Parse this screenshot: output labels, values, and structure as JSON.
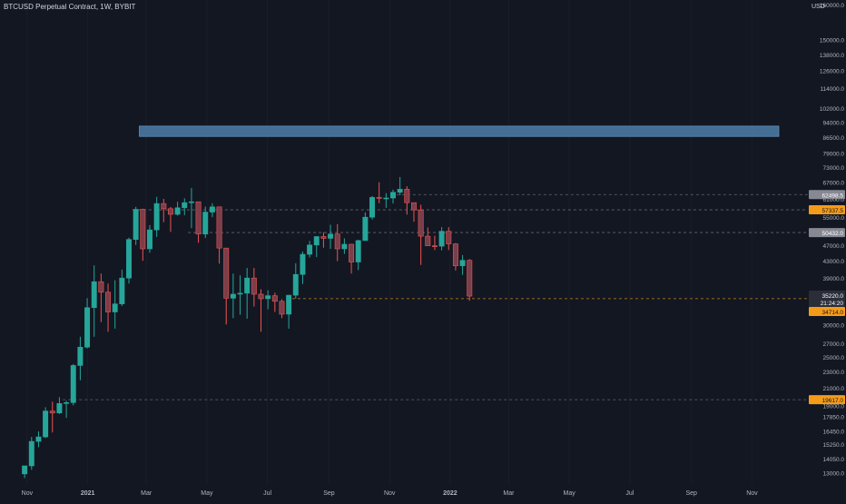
{
  "chart_title": "BTCUSD Perpetual Contract, 1W, BYBIT",
  "currency": "USD",
  "colors": {
    "background": "#131722",
    "up": "#26a69a",
    "down": "#ef5350",
    "down_body": "#7b3e4a",
    "zone": "#4e7ea8",
    "level_gray": "#787b86",
    "level_orange": "#f59b1a",
    "axis_text": "#b2b5be"
  },
  "y_tick_labels": [
    "150000.0",
    "138000.0",
    "126000.0",
    "114000.0",
    "102000.0",
    "94000.0",
    "86500.0",
    "79000.0",
    "73000.0",
    "67000.0",
    "61000.0",
    "55000.0",
    "47000.0",
    "43000.0",
    "39000.0",
    "35000.0",
    "30000.0",
    "27000.0",
    "25000.0",
    "23000.0",
    "21000.0",
    "19000.0",
    "17850.0",
    "16450.0",
    "15250.0",
    "14050.0",
    "13000.0"
  ],
  "x_tick_labels": [
    "Nov",
    "2021",
    "Mar",
    "May",
    "Jul",
    "Sep",
    "Nov",
    "2022",
    "Mar",
    "May",
    "Jul",
    "Sep",
    "Nov"
  ],
  "price_labels": {
    "top_partial": "160000.0",
    "level1": "62498.5",
    "level2": "57337.5",
    "level3": "50432.0",
    "current_price": "35220.0",
    "countdown": "21:24:20",
    "level4": "34714.0",
    "level5": "19617.0"
  },
  "chart_data": {
    "type": "candlestick",
    "title": "BTCUSD Perpetual Contract, 1W, BYBIT",
    "interval": "1W",
    "exchange": "BYBIT",
    "y_scale": "log",
    "ylim": [
      12500,
      165000
    ],
    "xlim": [
      "2020-10-12",
      "2022-11-28"
    ],
    "horizontal_levels": [
      {
        "price": 62498.5,
        "start": "2021-11-08",
        "color": "gray"
      },
      {
        "price": 57337.5,
        "start": "2021-02-15",
        "color": "gray"
      },
      {
        "price": 50432.0,
        "start": "2021-04-12",
        "color": "gray"
      },
      {
        "price": 34714.0,
        "start": "2021-07-26",
        "color": "orange"
      },
      {
        "price": 19617.0,
        "start": "2020-12-07",
        "color": "gray"
      }
    ],
    "zone": {
      "start": "2021-02-22",
      "end": "2022-11-28",
      "high": 92000,
      "low": 86800
    },
    "candles": [
      {
        "d": "2020-10-26",
        "o": 12900,
        "h": 13500,
        "l": 12600,
        "c": 13500
      },
      {
        "d": "2020-11-02",
        "o": 13500,
        "h": 15900,
        "l": 13200,
        "c": 15500
      },
      {
        "d": "2020-11-09",
        "o": 15500,
        "h": 16400,
        "l": 15000,
        "c": 15900
      },
      {
        "d": "2020-11-16",
        "o": 15900,
        "h": 18800,
        "l": 15800,
        "c": 18400
      },
      {
        "d": "2020-11-23",
        "o": 18400,
        "h": 19400,
        "l": 16300,
        "c": 18200
      },
      {
        "d": "2020-11-30",
        "o": 18200,
        "h": 19900,
        "l": 18100,
        "c": 19200
      },
      {
        "d": "2020-12-07",
        "o": 19200,
        "h": 19500,
        "l": 17700,
        "c": 19300
      },
      {
        "d": "2020-12-14",
        "o": 19300,
        "h": 24000,
        "l": 19000,
        "c": 23800
      },
      {
        "d": "2020-12-21",
        "o": 23800,
        "h": 28000,
        "l": 21900,
        "c": 26400
      },
      {
        "d": "2020-12-28",
        "o": 26400,
        "h": 34800,
        "l": 26200,
        "c": 33000
      },
      {
        "d": "2021-01-04",
        "o": 33000,
        "h": 41900,
        "l": 28000,
        "c": 38200
      },
      {
        "d": "2021-01-11",
        "o": 38200,
        "h": 40000,
        "l": 30400,
        "c": 36000
      },
      {
        "d": "2021-01-18",
        "o": 36000,
        "h": 37800,
        "l": 28800,
        "c": 32200
      },
      {
        "d": "2021-01-25",
        "o": 32200,
        "h": 38500,
        "l": 29300,
        "c": 33700
      },
      {
        "d": "2021-02-01",
        "o": 33700,
        "h": 40900,
        "l": 33300,
        "c": 39000
      },
      {
        "d": "2021-02-08",
        "o": 39000,
        "h": 49000,
        "l": 37800,
        "c": 48500
      },
      {
        "d": "2021-02-15",
        "o": 48500,
        "h": 58300,
        "l": 47000,
        "c": 57500
      },
      {
        "d": "2021-02-22",
        "o": 57500,
        "h": 57700,
        "l": 43000,
        "c": 46000
      },
      {
        "d": "2021-03-01",
        "o": 46000,
        "h": 52600,
        "l": 45000,
        "c": 51200
      },
      {
        "d": "2021-03-08",
        "o": 51200,
        "h": 61700,
        "l": 49200,
        "c": 59400
      },
      {
        "d": "2021-03-15",
        "o": 59400,
        "h": 61000,
        "l": 53500,
        "c": 57700
      },
      {
        "d": "2021-03-22",
        "o": 57700,
        "h": 58300,
        "l": 50600,
        "c": 55900
      },
      {
        "d": "2021-03-29",
        "o": 55900,
        "h": 60000,
        "l": 55500,
        "c": 58000
      },
      {
        "d": "2021-04-05",
        "o": 58000,
        "h": 61200,
        "l": 55600,
        "c": 59700
      },
      {
        "d": "2021-04-12",
        "o": 59700,
        "h": 64900,
        "l": 51700,
        "c": 60000
      },
      {
        "d": "2021-04-19",
        "o": 60000,
        "h": 60000,
        "l": 47600,
        "c": 50000
      },
      {
        "d": "2021-04-26",
        "o": 50000,
        "h": 58400,
        "l": 48900,
        "c": 56600
      },
      {
        "d": "2021-05-03",
        "o": 56600,
        "h": 59500,
        "l": 55000,
        "c": 58300
      },
      {
        "d": "2021-05-10",
        "o": 58300,
        "h": 58300,
        "l": 42300,
        "c": 46200
      },
      {
        "d": "2021-05-17",
        "o": 46200,
        "h": 46200,
        "l": 30000,
        "c": 34800
      },
      {
        "d": "2021-05-24",
        "o": 34800,
        "h": 40000,
        "l": 31100,
        "c": 35600
      },
      {
        "d": "2021-05-31",
        "o": 35600,
        "h": 39600,
        "l": 31700,
        "c": 35800
      },
      {
        "d": "2021-06-07",
        "o": 35800,
        "h": 41300,
        "l": 31000,
        "c": 39000
      },
      {
        "d": "2021-06-14",
        "o": 39000,
        "h": 41300,
        "l": 33200,
        "c": 35600
      },
      {
        "d": "2021-06-21",
        "o": 35600,
        "h": 36600,
        "l": 28800,
        "c": 34700
      },
      {
        "d": "2021-06-28",
        "o": 34700,
        "h": 36400,
        "l": 32700,
        "c": 35300
      },
      {
        "d": "2021-07-05",
        "o": 35300,
        "h": 35900,
        "l": 32200,
        "c": 34200
      },
      {
        "d": "2021-07-12",
        "o": 34200,
        "h": 34600,
        "l": 31100,
        "c": 31800
      },
      {
        "d": "2021-07-19",
        "o": 31800,
        "h": 35400,
        "l": 29300,
        "c": 35400
      },
      {
        "d": "2021-07-26",
        "o": 35400,
        "h": 42400,
        "l": 34700,
        "c": 39800
      },
      {
        "d": "2021-08-02",
        "o": 39800,
        "h": 45300,
        "l": 37700,
        "c": 44600
      },
      {
        "d": "2021-08-09",
        "o": 44600,
        "h": 48100,
        "l": 43800,
        "c": 47000
      },
      {
        "d": "2021-08-16",
        "o": 47000,
        "h": 49400,
        "l": 43900,
        "c": 49300
      },
      {
        "d": "2021-08-23",
        "o": 49300,
        "h": 50500,
        "l": 46300,
        "c": 48800
      },
      {
        "d": "2021-08-30",
        "o": 48800,
        "h": 52700,
        "l": 46000,
        "c": 50000
      },
      {
        "d": "2021-09-06",
        "o": 50000,
        "h": 52900,
        "l": 42900,
        "c": 46000
      },
      {
        "d": "2021-09-13",
        "o": 46000,
        "h": 48800,
        "l": 44700,
        "c": 47200
      },
      {
        "d": "2021-09-20",
        "o": 47200,
        "h": 47300,
        "l": 40000,
        "c": 42700
      },
      {
        "d": "2021-09-27",
        "o": 42700,
        "h": 48400,
        "l": 40800,
        "c": 48200
      },
      {
        "d": "2021-10-04",
        "o": 48200,
        "h": 56500,
        "l": 48200,
        "c": 55000
      },
      {
        "d": "2021-10-11",
        "o": 55000,
        "h": 62000,
        "l": 54300,
        "c": 61500
      },
      {
        "d": "2021-10-18",
        "o": 61500,
        "h": 67000,
        "l": 59500,
        "c": 61300
      },
      {
        "d": "2021-10-25",
        "o": 61300,
        "h": 63000,
        "l": 58000,
        "c": 61300
      },
      {
        "d": "2021-11-01",
        "o": 61300,
        "h": 64300,
        "l": 59400,
        "c": 63300
      },
      {
        "d": "2021-11-08",
        "o": 63300,
        "h": 69000,
        "l": 62300,
        "c": 64400
      },
      {
        "d": "2021-11-15",
        "o": 64400,
        "h": 65500,
        "l": 55800,
        "c": 59700
      },
      {
        "d": "2021-11-22",
        "o": 59700,
        "h": 59700,
        "l": 53600,
        "c": 57300
      },
      {
        "d": "2021-11-29",
        "o": 57300,
        "h": 59000,
        "l": 42000,
        "c": 49400
      },
      {
        "d": "2021-12-06",
        "o": 49400,
        "h": 51900,
        "l": 46800,
        "c": 46800
      },
      {
        "d": "2021-12-13",
        "o": 46800,
        "h": 49500,
        "l": 45700,
        "c": 46700
      },
      {
        "d": "2021-12-20",
        "o": 46700,
        "h": 52000,
        "l": 45600,
        "c": 50800
      },
      {
        "d": "2021-12-27",
        "o": 50800,
        "h": 52000,
        "l": 45700,
        "c": 47300
      },
      {
        "d": "2022-01-03",
        "o": 47300,
        "h": 47500,
        "l": 40700,
        "c": 41800
      },
      {
        "d": "2022-01-10",
        "o": 41800,
        "h": 44400,
        "l": 39700,
        "c": 43100
      },
      {
        "d": "2022-01-17",
        "o": 43100,
        "h": 43400,
        "l": 34300,
        "c": 35220
      }
    ]
  }
}
